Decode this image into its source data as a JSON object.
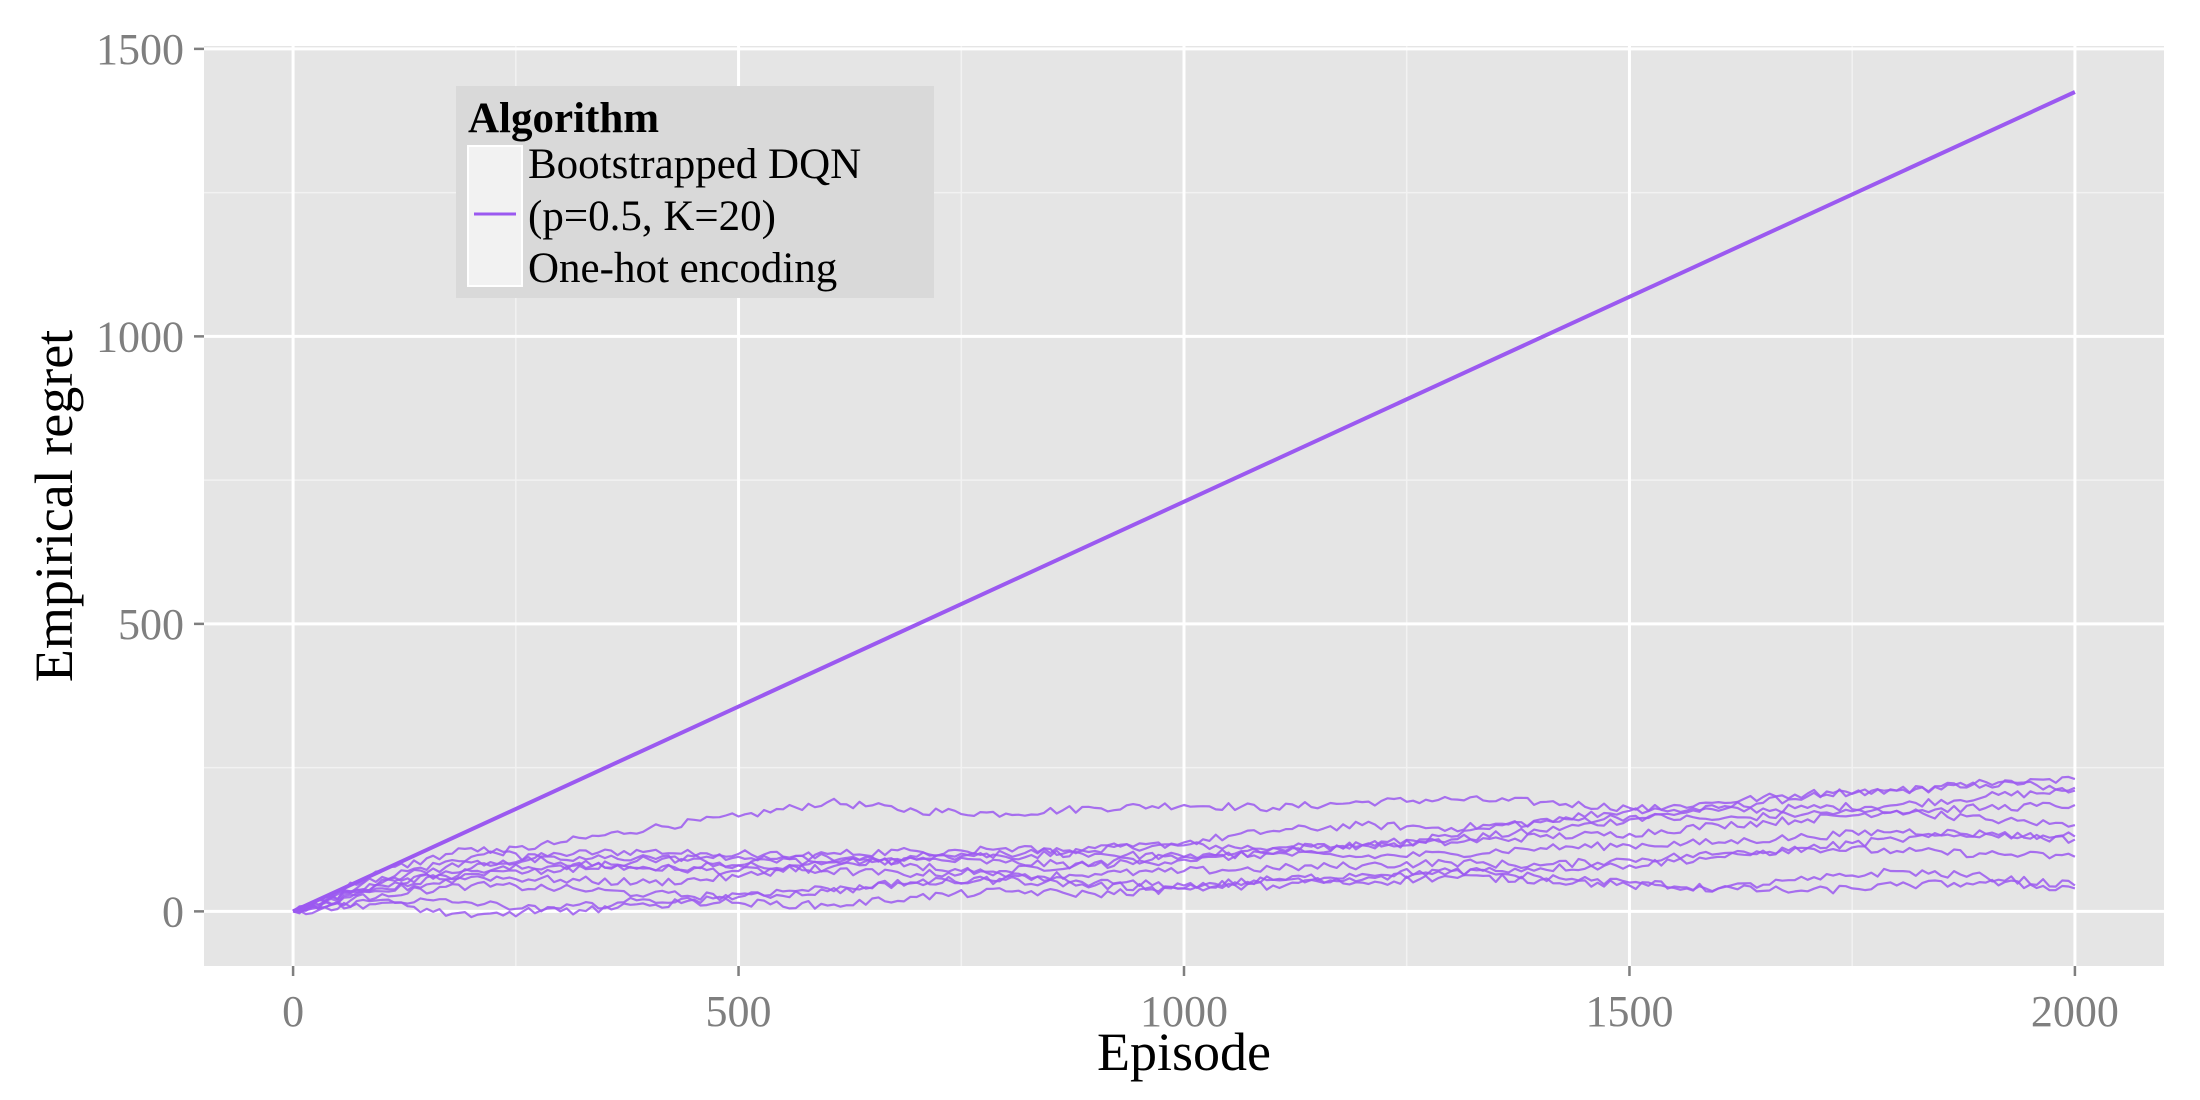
{
  "chart_data": {
    "type": "line",
    "title": "",
    "xlabel": "Episode",
    "ylabel": "Empirical regret",
    "xlim": [
      -100,
      2100
    ],
    "ylim": [
      -95,
      1505
    ],
    "x_ticks": [
      0,
      500,
      1000,
      1500,
      2000
    ],
    "x_tick_labels": [
      "0",
      "500",
      "1000",
      "1500",
      "2000"
    ],
    "y_ticks": [
      0,
      500,
      1000,
      1500
    ],
    "y_tick_labels": [
      "0",
      "500",
      "1000",
      "1500"
    ],
    "grid": true,
    "background": "#e5e5e5",
    "series_color": "#9b59f0",
    "legend": {
      "placement": "top-left",
      "title": "Algorithm",
      "entry_lines": [
        "Bootstrapped DQN",
        "(p=0.5, K=20)",
        "One-hot encoding"
      ]
    },
    "series": [
      {
        "x": [
          0,
          2000
        ],
        "values": [
          0,
          1425
        ]
      },
      {
        "x": [
          0,
          100,
          200,
          300,
          400,
          500,
          600,
          700,
          800,
          900,
          1000,
          1100,
          1200,
          1300,
          1400,
          1500,
          1600,
          1700,
          1800,
          1900,
          2000
        ],
        "values": [
          0,
          45,
          75,
          100,
          105,
          95,
          85,
          90,
          100,
          110,
          115,
          110,
          115,
          125,
          140,
          160,
          180,
          200,
          210,
          220,
          230
        ]
      },
      {
        "x": [
          0,
          100,
          200,
          300,
          400,
          500,
          600,
          700,
          800,
          900,
          1000,
          1100,
          1200,
          1300,
          1400,
          1500,
          1600,
          1700,
          1800,
          1900,
          2000
        ],
        "values": [
          0,
          60,
          95,
          120,
          145,
          165,
          190,
          175,
          170,
          180,
          185,
          180,
          190,
          195,
          190,
          180,
          175,
          180,
          185,
          200,
          210
        ]
      },
      {
        "x": [
          0,
          100,
          200,
          300,
          400,
          500,
          600,
          700,
          800,
          900,
          1000,
          1100,
          1200,
          1300,
          1400,
          1500,
          1600,
          1700,
          1800,
          1900,
          2000
        ],
        "values": [
          0,
          70,
          110,
          85,
          75,
          70,
          75,
          95,
          110,
          100,
          95,
          100,
          115,
          130,
          160,
          175,
          190,
          205,
          210,
          225,
          215
        ]
      },
      {
        "x": [
          0,
          100,
          200,
          300,
          400,
          500,
          600,
          700,
          800,
          900,
          1000,
          1100,
          1200,
          1300,
          1400,
          1500,
          1600,
          1700,
          1800,
          1900,
          2000
        ],
        "values": [
          0,
          40,
          70,
          80,
          75,
          80,
          100,
          105,
          95,
          105,
          120,
          140,
          150,
          145,
          155,
          165,
          160,
          170,
          175,
          160,
          150
        ]
      },
      {
        "x": [
          0,
          100,
          200,
          300,
          400,
          500,
          600,
          700,
          800,
          900,
          1000,
          1100,
          1200,
          1300,
          1400,
          1500,
          1600,
          1700,
          1800,
          1900,
          2000
        ],
        "values": [
          0,
          55,
          85,
          90,
          95,
          80,
          70,
          65,
          70,
          85,
          95,
          110,
          115,
          120,
          130,
          135,
          150,
          160,
          175,
          180,
          185
        ]
      },
      {
        "x": [
          0,
          100,
          200,
          300,
          400,
          500,
          600,
          700,
          800,
          900,
          1000,
          1100,
          1200,
          1300,
          1400,
          1500,
          1600,
          1700,
          1800,
          1900,
          2000
        ],
        "values": [
          0,
          35,
          60,
          55,
          50,
          60,
          85,
          90,
          85,
          80,
          90,
          100,
          95,
          100,
          110,
          115,
          120,
          130,
          140,
          135,
          125
        ]
      },
      {
        "x": [
          0,
          100,
          200,
          300,
          400,
          500,
          600,
          700,
          800,
          900,
          1000,
          1100,
          1200,
          1300,
          1400,
          1500,
          1600,
          1700,
          1800,
          1900,
          2000
        ],
        "values": [
          0,
          30,
          45,
          40,
          30,
          25,
          35,
          50,
          60,
          65,
          70,
          75,
          80,
          85,
          80,
          90,
          100,
          110,
          105,
          100,
          95
        ]
      },
      {
        "x": [
          0,
          100,
          200,
          300,
          400,
          500,
          600,
          700,
          800,
          900,
          1000,
          1100,
          1200,
          1300,
          1400,
          1500,
          1600,
          1700,
          1800,
          1900,
          2000
        ],
        "values": [
          0,
          20,
          15,
          0,
          10,
          30,
          40,
          50,
          55,
          45,
          40,
          45,
          55,
          70,
          75,
          80,
          95,
          110,
          125,
          135,
          130
        ]
      },
      {
        "x": [
          0,
          100,
          200,
          300,
          400,
          500,
          600,
          700,
          800,
          900,
          1000,
          1100,
          1200,
          1300,
          1400,
          1500,
          1600,
          1700,
          1800,
          1900,
          2000
        ],
        "values": [
          0,
          15,
          -10,
          5,
          20,
          15,
          10,
          25,
          35,
          30,
          40,
          55,
          50,
          60,
          55,
          45,
          40,
          55,
          70,
          60,
          45
        ]
      },
      {
        "x": [
          0,
          100,
          200,
          300,
          400,
          500,
          600,
          700,
          800,
          900,
          1000,
          1100,
          1200,
          1300,
          1400,
          1500,
          1600,
          1700,
          1800,
          1900,
          2000
        ],
        "values": [
          0,
          50,
          65,
          70,
          90,
          100,
          95,
          80,
          60,
          50,
          45,
          55,
          65,
          70,
          60,
          50,
          40,
          35,
          45,
          50,
          40
        ]
      }
    ]
  }
}
